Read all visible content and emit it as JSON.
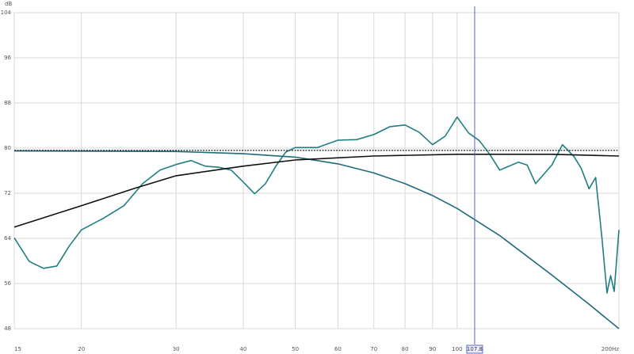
{
  "chart_data": {
    "type": "line",
    "y_label": "dB",
    "log_x": true,
    "grid": true,
    "xlim": [
      15,
      200
    ],
    "xticks": [
      15,
      20,
      30,
      40,
      50,
      60,
      70,
      80,
      90,
      100,
      {
        "value": 200,
        "label": "200Hz"
      }
    ],
    "ylim": [
      48,
      104
    ],
    "yticks": [
      48,
      56,
      64,
      72,
      80,
      88,
      96,
      104
    ],
    "cursor": 107.8,
    "series": [
      {
        "color": "#1f7f80",
        "x": [
          15,
          16,
          17,
          18,
          19,
          20,
          22,
          24,
          26,
          28,
          30,
          32,
          34,
          36,
          38,
          40,
          42,
          44,
          46,
          48,
          50,
          55,
          60,
          65,
          70,
          75,
          80,
          85,
          90,
          95,
          100,
          105,
          110,
          115,
          120,
          130,
          135,
          140,
          150,
          157,
          165,
          170,
          176,
          181,
          186,
          190,
          193,
          196,
          200
        ],
        "values": [
          64.1,
          59.9,
          58.7,
          59.1,
          62.7,
          65.5,
          67.6,
          69.8,
          73.7,
          76.1,
          77.1,
          77.8,
          76.8,
          76.6,
          76.1,
          74.0,
          71.9,
          73.7,
          76.8,
          79.3,
          80.1,
          80.1,
          81.4,
          81.5,
          82.4,
          83.8,
          84.1,
          82.8,
          80.6,
          82.1,
          85.5,
          82.7,
          81.3,
          78.9,
          76.1,
          77.5,
          77.0,
          73.7,
          77.0,
          80.6,
          78.5,
          76.5,
          72.8,
          74.8,
          64.0,
          54.3,
          57.4,
          54.6,
          65.5
        ]
      },
      {
        "color": "#1d6b7a",
        "x": [
          15,
          30,
          40,
          50,
          60,
          70,
          80,
          90,
          100,
          120,
          150,
          175,
          200
        ],
        "values": [
          79.5,
          79.4,
          79.0,
          78.4,
          77.2,
          75.6,
          73.7,
          71.6,
          69.3,
          64.5,
          57.5,
          52.5,
          48.0
        ]
      },
      {
        "color": "#111111",
        "x": [
          15,
          20,
          25,
          30,
          40,
          50,
          70,
          100,
          150,
          200
        ],
        "values": [
          66.0,
          69.8,
          72.8,
          75.1,
          76.8,
          77.9,
          78.6,
          78.9,
          78.9,
          78.6
        ]
      },
      {
        "color": "#222222",
        "dashed": true,
        "x": [
          15,
          200
        ],
        "values": [
          79.6,
          79.6
        ]
      }
    ]
  }
}
